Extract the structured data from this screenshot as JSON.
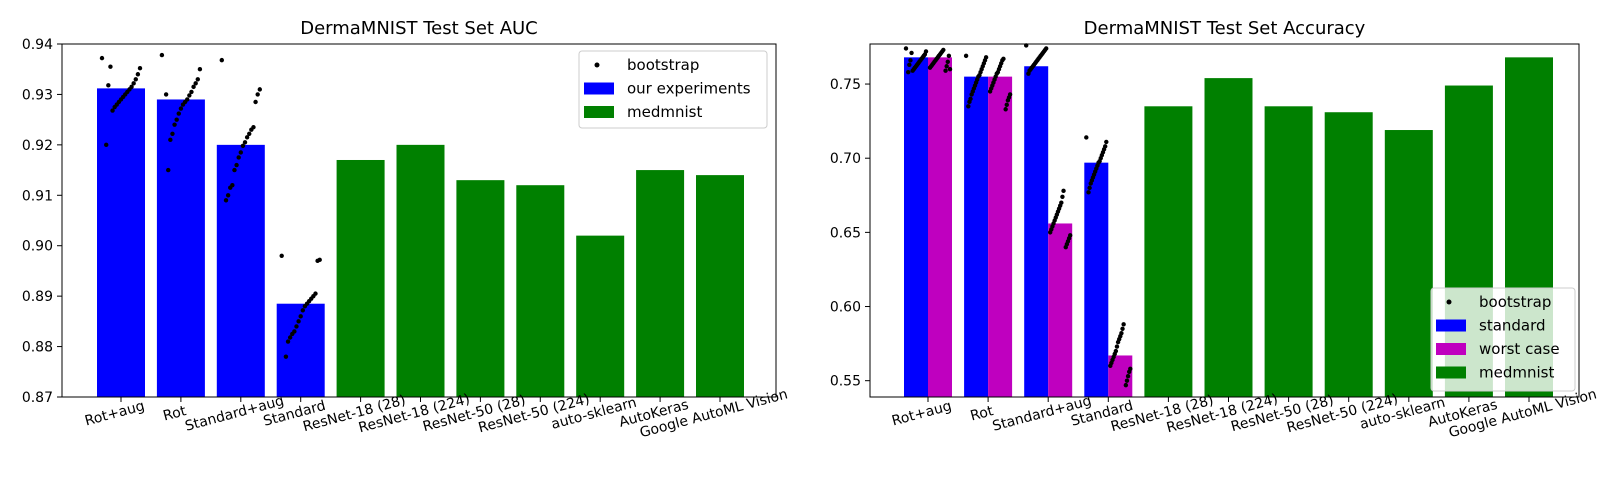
{
  "chart_data": [
    {
      "type": "bar",
      "title": "DermaMNIST Test Set AUC",
      "xlabel": "",
      "ylabel": "",
      "ylim": [
        0.87,
        0.94
      ],
      "yticks": [
        "0.87",
        "0.88",
        "0.89",
        "0.90",
        "0.91",
        "0.92",
        "0.93",
        "0.94"
      ],
      "yticks_values": [
        0.87,
        0.88,
        0.89,
        0.9,
        0.91,
        0.92,
        0.93,
        0.94
      ],
      "categories": [
        "Rot+aug",
        "Rot",
        "Standard+aug",
        "Standard",
        "ResNet-18 (28)",
        "ResNet-18 (224)",
        "ResNet-50 (28)",
        "ResNet-50 (224)",
        "auto-sklearn",
        "AutoKeras",
        "Google AutoML Vision"
      ],
      "series": [
        {
          "name": "our experiments",
          "color": "#0000ff",
          "values": [
            0.9312,
            0.929,
            0.92,
            0.8885,
            null,
            null,
            null,
            null,
            null,
            null,
            null
          ]
        },
        {
          "name": "medmnist",
          "color": "#008000",
          "values": [
            null,
            null,
            null,
            null,
            0.917,
            0.92,
            0.913,
            0.912,
            0.902,
            0.915,
            0.914
          ]
        }
      ],
      "bootstrap": {
        "name": "bootstrap",
        "points": [
          [
            0.9372,
            0.9352,
            0.934,
            0.933,
            0.9322,
            0.9315,
            0.931,
            0.9305,
            0.93,
            0.9295,
            0.929,
            0.9285,
            0.928,
            0.9275,
            0.9268,
            0.9355,
            0.9318,
            0.92
          ],
          [
            0.9378,
            0.935,
            0.933,
            0.9322,
            0.9315,
            0.9305,
            0.9298,
            0.929,
            0.9285,
            0.928,
            0.9272,
            0.9262,
            0.925,
            0.924,
            0.9222,
            0.921,
            0.915,
            0.93
          ],
          [
            0.9368,
            0.931,
            0.93,
            0.9285,
            0.9235,
            0.923,
            0.9222,
            0.9215,
            0.9205,
            0.9198,
            0.9185,
            0.9175,
            0.916,
            0.915,
            0.912,
            0.9115,
            0.91,
            0.909
          ],
          [
            0.898,
            0.8972,
            0.897,
            0.8905,
            0.89,
            0.8895,
            0.889,
            0.8885,
            0.888,
            0.8872,
            0.886,
            0.885,
            0.884,
            0.883,
            0.8825,
            0.8818,
            0.881,
            0.878
          ]
        ]
      },
      "legend": {
        "position": "top-right",
        "entries": [
          {
            "label": "bootstrap",
            "kind": "dot",
            "color": "#000000"
          },
          {
            "label": "our experiments",
            "kind": "patch",
            "color": "#0000ff"
          },
          {
            "label": "medmnist",
            "kind": "patch",
            "color": "#008000"
          }
        ]
      },
      "grid": false
    },
    {
      "type": "bar",
      "title": "DermaMNIST Test Set Accuracy",
      "xlabel": "",
      "ylabel": "",
      "ylim": [
        0.539,
        0.777
      ],
      "yticks": [
        "0.55",
        "0.60",
        "0.65",
        "0.70",
        "0.75"
      ],
      "yticks_values": [
        0.55,
        0.6,
        0.65,
        0.7,
        0.75
      ],
      "categories": [
        "Rot+aug",
        "Rot",
        "Standard+aug",
        "Standard",
        "ResNet-18 (28)",
        "ResNet-18 (224)",
        "ResNet-50 (28)",
        "ResNet-50 (224)",
        "auto-sklearn",
        "AutoKeras",
        "Google AutoML Vision"
      ],
      "series": [
        {
          "name": "standard",
          "color": "#0000ff",
          "values": [
            0.768,
            0.755,
            0.762,
            0.697,
            null,
            null,
            null,
            null,
            null,
            null,
            null
          ]
        },
        {
          "name": "worst case",
          "color": "#bf00bf",
          "values": [
            0.768,
            0.755,
            0.656,
            0.567,
            null,
            null,
            null,
            null,
            null,
            null,
            null
          ]
        },
        {
          "name": "medmnist",
          "color": "#008000",
          "values": [
            null,
            null,
            null,
            null,
            0.735,
            0.754,
            0.735,
            0.731,
            0.719,
            0.749,
            0.768
          ]
        }
      ],
      "bootstrap": {
        "name": "bootstrap",
        "points": [
          [
            [
              0.774,
              0.772,
              0.77,
              0.769,
              0.768,
              0.767,
              0.766,
              0.765,
              0.764,
              0.763,
              0.762,
              0.761,
              0.76,
              0.759,
              0.771,
              0.766,
              0.763,
              0.758
            ],
            [
              0.773,
              0.772,
              0.771,
              0.77,
              0.769,
              0.768,
              0.767,
              0.766,
              0.765,
              0.764,
              0.763,
              0.762,
              0.761,
              0.76,
              0.769,
              0.765,
              0.762,
              0.759
            ]
          ],
          [
            [
              0.769,
              0.768,
              0.766,
              0.764,
              0.762,
              0.76,
              0.758,
              0.756,
              0.755,
              0.753,
              0.751,
              0.749,
              0.747,
              0.745,
              0.743,
              0.74,
              0.738,
              0.735
            ],
            [
              0.767,
              0.766,
              0.764,
              0.762,
              0.76,
              0.758,
              0.757,
              0.755,
              0.753,
              0.751,
              0.749,
              0.747,
              0.745,
              0.743,
              0.741,
              0.739,
              0.736,
              0.733
            ]
          ],
          [
            [
              0.776,
              0.774,
              0.773,
              0.772,
              0.771,
              0.77,
              0.769,
              0.768,
              0.767,
              0.766,
              0.765,
              0.764,
              0.763,
              0.762,
              0.761,
              0.76,
              0.759,
              0.757
            ],
            [
              0.678,
              0.674,
              0.67,
              0.668,
              0.666,
              0.664,
              0.662,
              0.66,
              0.658,
              0.656,
              0.654,
              0.652,
              0.65,
              0.648,
              0.646,
              0.644,
              0.642,
              0.64
            ]
          ],
          [
            [
              0.714,
              0.711,
              0.708,
              0.706,
              0.704,
              0.702,
              0.7,
              0.698,
              0.697,
              0.695,
              0.693,
              0.691,
              0.689,
              0.687,
              0.685,
              0.683,
              0.68,
              0.677
            ],
            [
              0.588,
              0.585,
              0.582,
              0.58,
              0.578,
              0.576,
              0.573,
              0.57,
              0.568,
              0.566,
              0.564,
              0.562,
              0.56,
              0.558,
              0.556,
              0.553,
              0.55,
              0.547
            ]
          ]
        ]
      },
      "legend": {
        "position": "lower-right",
        "entries": [
          {
            "label": "bootstrap",
            "kind": "dot",
            "color": "#000000"
          },
          {
            "label": "standard",
            "kind": "patch",
            "color": "#0000ff"
          },
          {
            "label": "worst case",
            "kind": "patch",
            "color": "#bf00bf"
          },
          {
            "label": "medmnist",
            "kind": "patch",
            "color": "#008000"
          }
        ]
      },
      "grid": false
    }
  ]
}
